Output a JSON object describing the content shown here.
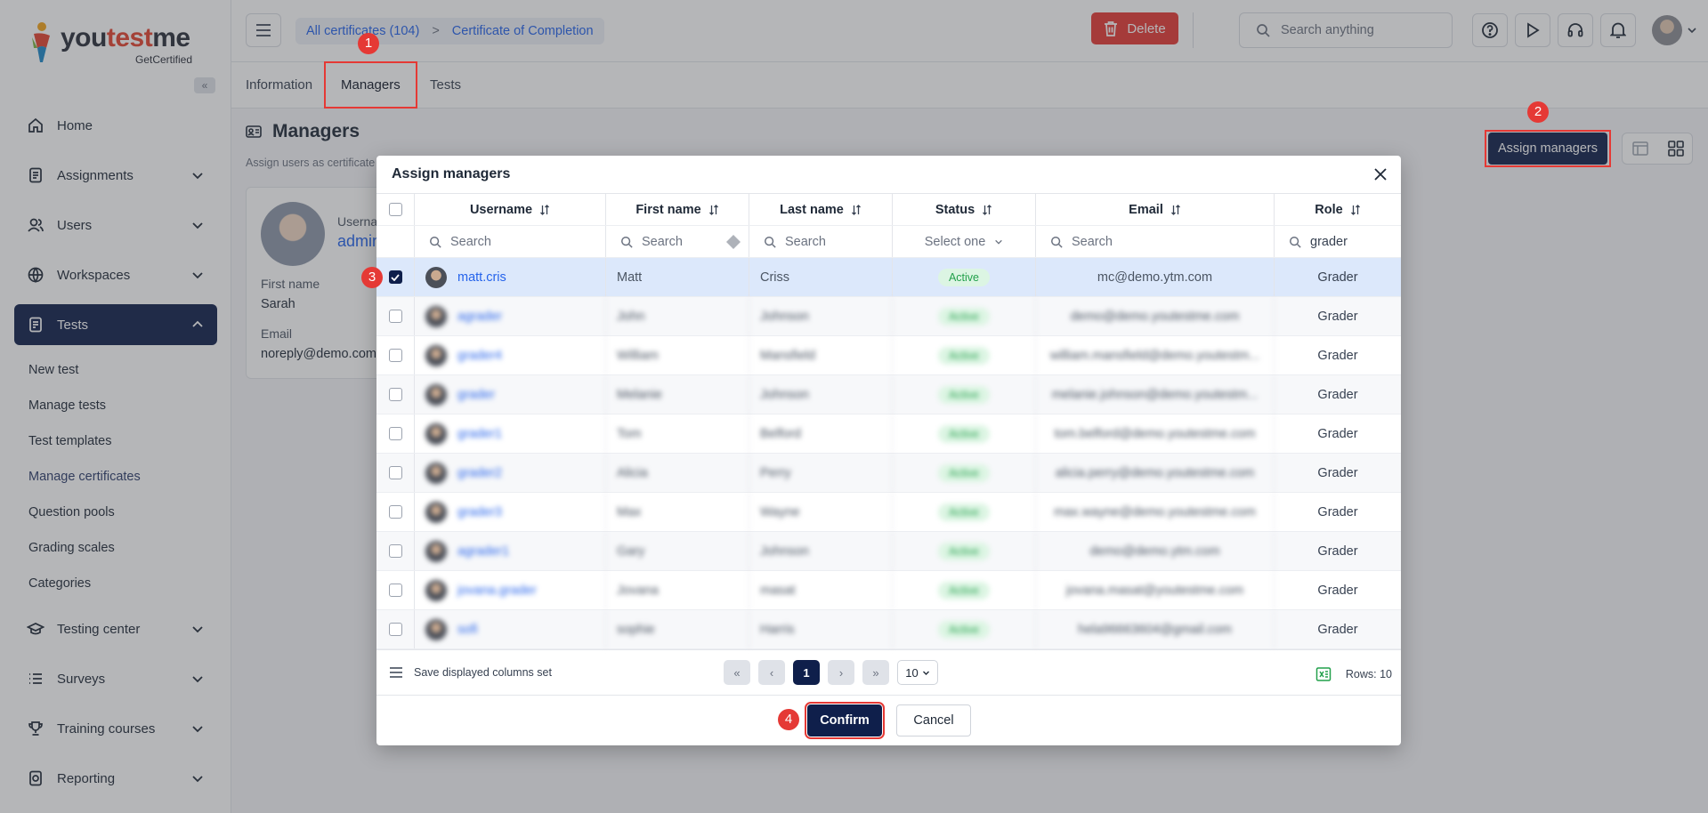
{
  "logo": {
    "brand_prefix": "you",
    "brand_accent": "test",
    "brand_suffix": "me",
    "subtitle": "GetCertified"
  },
  "sidebar": {
    "collapse_label": "«",
    "items": [
      {
        "label": "Home",
        "icon": "home-icon"
      },
      {
        "label": "Assignments",
        "icon": "document-icon"
      },
      {
        "label": "Users",
        "icon": "users-icon"
      },
      {
        "label": "Workspaces",
        "icon": "globe-icon"
      },
      {
        "label": "Tests",
        "icon": "test-icon"
      },
      {
        "label": "Testing center",
        "icon": "graduation-cap-icon"
      },
      {
        "label": "Surveys",
        "icon": "list-icon"
      },
      {
        "label": "Training courses",
        "icon": "trophy-icon"
      },
      {
        "label": "Reporting",
        "icon": "report-icon"
      }
    ],
    "tests_subitems": [
      "New test",
      "Manage tests",
      "Test templates",
      "Manage certificates",
      "Question pools",
      "Grading scales",
      "Categories"
    ]
  },
  "topbar": {
    "breadcrumb_root": "All certificates (104)",
    "breadcrumb_sep": ">",
    "breadcrumb_current": "Certificate of Completion",
    "delete_label": "Delete",
    "search_placeholder": "Search anything"
  },
  "tabs": [
    "Information",
    "Managers",
    "Tests"
  ],
  "page": {
    "title": "Managers",
    "subtitle": "Assign users as certificate",
    "assign_button": "Assign managers",
    "card": {
      "username_label": "Userna",
      "username_value": "admin",
      "firstname_label": "First name",
      "firstname_value": "Sarah",
      "email_label": "Email",
      "email_value": "noreply@demo.com"
    }
  },
  "modal": {
    "title": "Assign managers",
    "columns": [
      "Username",
      "First name",
      "Last name",
      "Status",
      "Email",
      "Role"
    ],
    "filters": {
      "username": "Search",
      "firstname": "Search",
      "lastname": "Search",
      "status": "Select one",
      "email": "Search",
      "role": "grader"
    },
    "rows": [
      {
        "username": "matt.cris",
        "first": "Matt",
        "last": "Criss",
        "status": "Active",
        "email": "mc@demo.ytm.com",
        "role": "Grader",
        "selected": true
      },
      {
        "username": "agrader",
        "first": "John",
        "last": "Johnson",
        "status": "Active",
        "email": "demo@demo.youtestme.com",
        "role": "Grader"
      },
      {
        "username": "grader4",
        "first": "William",
        "last": "Mansfield",
        "status": "Active",
        "email": "william.mansfield@demo.youtestm...",
        "role": "Grader"
      },
      {
        "username": "grader",
        "first": "Melanie",
        "last": "Johnson",
        "status": "Active",
        "email": "melanie.johnson@demo.youtestm...",
        "role": "Grader"
      },
      {
        "username": "grader1",
        "first": "Tom",
        "last": "Belford",
        "status": "Active",
        "email": "tom.belford@demo.youtestme.com",
        "role": "Grader"
      },
      {
        "username": "grader2",
        "first": "Alicia",
        "last": "Perry",
        "status": "Active",
        "email": "alicia.perry@demo.youtestme.com",
        "role": "Grader"
      },
      {
        "username": "grader3",
        "first": "Max",
        "last": "Wayne",
        "status": "Active",
        "email": "max.wayne@demo.youtestme.com",
        "role": "Grader"
      },
      {
        "username": "agrader1",
        "first": "Gary",
        "last": "Johnson",
        "status": "Active",
        "email": "demo@demo.ytm.com",
        "role": "Grader"
      },
      {
        "username": "jovana.grader",
        "first": "Jovana",
        "last": "masat",
        "status": "Active",
        "email": "jovana.masat@youtestme.com",
        "role": "Grader"
      },
      {
        "username": "sofi",
        "first": "sophie",
        "last": "Harris",
        "status": "Active",
        "email": "hela96663604@gmail.com",
        "role": "Grader"
      }
    ],
    "save_columns_label": "Save displayed columns set",
    "pager": {
      "first": "«",
      "prev": "‹",
      "current": "1",
      "next": "›",
      "last": "»",
      "page_size": "10"
    },
    "rows_label": "Rows: 10",
    "confirm_label": "Confirm",
    "cancel_label": "Cancel"
  },
  "annotations": [
    "1",
    "2",
    "3",
    "4"
  ],
  "colors": {
    "primary": "#0f1f4b",
    "danger": "#e53935",
    "link": "#2563eb",
    "active_badge": "#22a04b"
  }
}
